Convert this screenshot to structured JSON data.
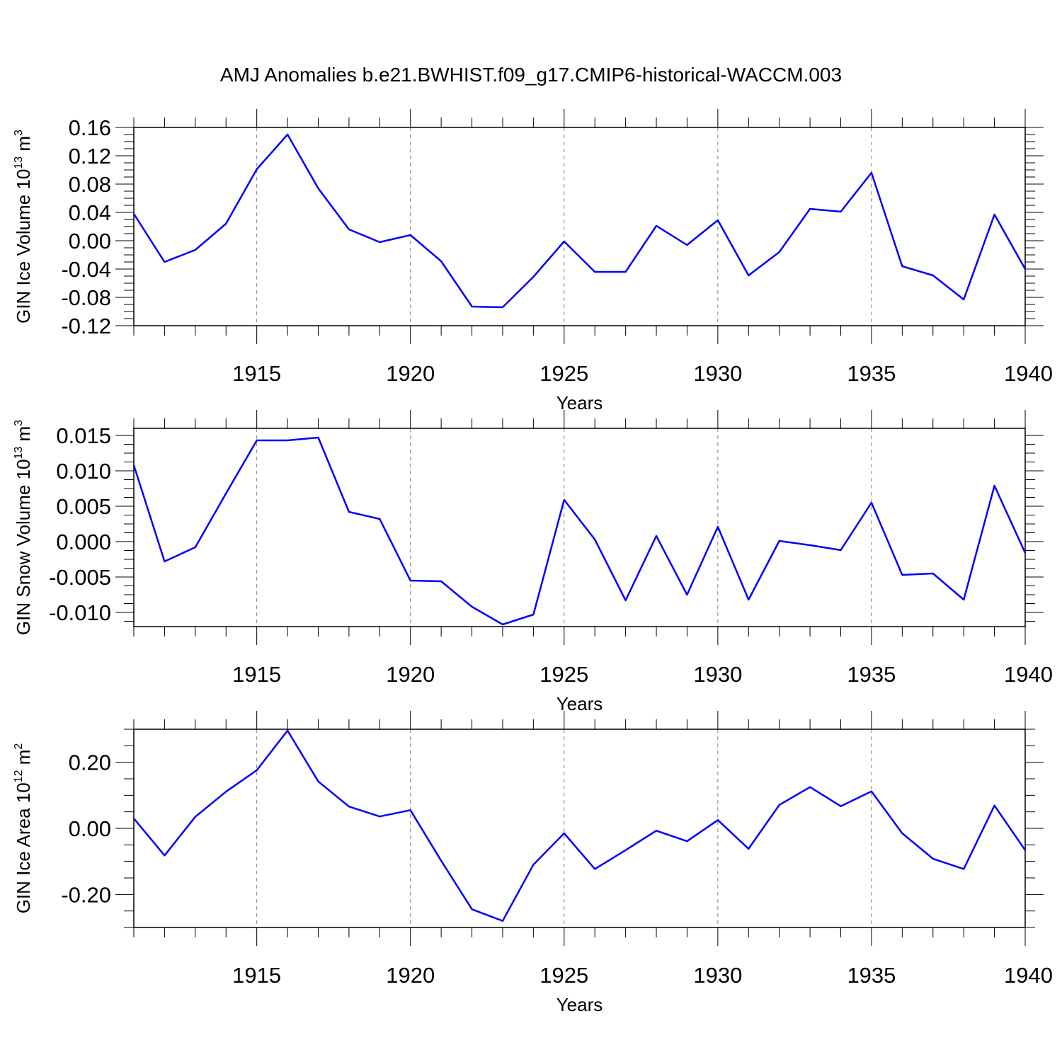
{
  "title": "AMJ Anomalies b.e21.BWHIST.f09_g17.CMIP6-historical-WACCM.003",
  "chart_data": [
    {
      "type": "line",
      "ylabel": "GIN Ice Volume 10",
      "ylabel_exp": "13",
      "ylabel_unit": " m",
      "ylabel_unit_exp": "3",
      "xlabel": "Years",
      "xlim": [
        1911,
        1940
      ],
      "xticks": [
        "1915",
        "1920",
        "1925",
        "1930",
        "1935",
        "1940"
      ],
      "ylim": [
        -0.12,
        0.16
      ],
      "yticks": [
        "0.16",
        "0.12",
        "0.08",
        "0.04",
        "0.00",
        "-0.04",
        "-0.08",
        "-0.12"
      ],
      "line_color": "#0000ff",
      "x": [
        1911,
        1912,
        1913,
        1914,
        1915,
        1916,
        1917,
        1918,
        1919,
        1920,
        1921,
        1922,
        1923,
        1924,
        1925,
        1926,
        1927,
        1928,
        1929,
        1930,
        1931,
        1932,
        1933,
        1934,
        1935,
        1936,
        1937,
        1938,
        1939,
        1940
      ],
      "values": [
        0.038,
        -0.03,
        -0.013,
        0.024,
        0.101,
        0.15,
        0.074,
        0.016,
        -0.002,
        0.008,
        -0.029,
        -0.093,
        -0.094,
        -0.051,
        -0.001,
        -0.044,
        -0.044,
        0.021,
        -0.006,
        0.029,
        -0.049,
        -0.016,
        0.045,
        0.041,
        0.096,
        -0.036,
        -0.049,
        -0.083,
        0.037,
        -0.04
      ]
    },
    {
      "type": "line",
      "ylabel": "GIN Snow Volume 10",
      "ylabel_exp": "13",
      "ylabel_unit": " m",
      "ylabel_unit_exp": "3",
      "xlabel": "Years",
      "xlim": [
        1911,
        1940
      ],
      "xticks": [
        "1915",
        "1920",
        "1925",
        "1930",
        "1935",
        "1940"
      ],
      "ylim": [
        -0.012,
        0.016
      ],
      "yticks": [
        "0.015",
        "0.010",
        "0.005",
        "0.000",
        "-0.005",
        "-0.010"
      ],
      "line_color": "#0000ff",
      "x": [
        1911,
        1912,
        1913,
        1914,
        1915,
        1916,
        1917,
        1918,
        1919,
        1920,
        1921,
        1922,
        1923,
        1924,
        1925,
        1926,
        1927,
        1928,
        1929,
        1930,
        1931,
        1932,
        1933,
        1934,
        1935,
        1936,
        1937,
        1938,
        1939,
        1940
      ],
      "values": [
        0.0108,
        -0.0028,
        -0.0008,
        0.0068,
        0.0143,
        0.0143,
        0.0147,
        0.0042,
        0.0032,
        -0.0055,
        -0.0056,
        -0.0092,
        -0.0117,
        -0.0103,
        0.0059,
        0.0003,
        -0.0083,
        0.0008,
        -0.0075,
        0.0021,
        -0.0082,
        0.0001,
        -0.0005,
        -0.0012,
        0.0055,
        -0.0047,
        -0.0045,
        -0.0082,
        0.0079,
        -0.0016
      ]
    },
    {
      "type": "line",
      "ylabel": "GIN Ice Area 10",
      "ylabel_exp": "12",
      "ylabel_unit": " m",
      "ylabel_unit_exp": "2",
      "xlabel": "Years",
      "xlim": [
        1911,
        1940
      ],
      "xticks": [
        "1915",
        "1920",
        "1925",
        "1930",
        "1935",
        "1940"
      ],
      "ylim": [
        -0.3,
        0.3
      ],
      "yticks": [
        "0.20",
        "0.00",
        "-0.20"
      ],
      "line_color": "#0000ff",
      "x": [
        1911,
        1912,
        1913,
        1914,
        1915,
        1916,
        1917,
        1918,
        1919,
        1920,
        1921,
        1922,
        1923,
        1924,
        1925,
        1926,
        1927,
        1928,
        1929,
        1930,
        1931,
        1932,
        1933,
        1934,
        1935,
        1936,
        1937,
        1938,
        1939,
        1940
      ],
      "values": [
        0.03,
        -0.082,
        0.035,
        0.111,
        0.176,
        0.296,
        0.142,
        0.066,
        0.036,
        0.055,
        -0.098,
        -0.245,
        -0.28,
        -0.11,
        -0.015,
        -0.123,
        -0.066,
        -0.007,
        -0.039,
        0.025,
        -0.062,
        0.071,
        0.125,
        0.067,
        0.112,
        -0.015,
        -0.092,
        -0.123,
        0.069,
        -0.066
      ]
    }
  ]
}
